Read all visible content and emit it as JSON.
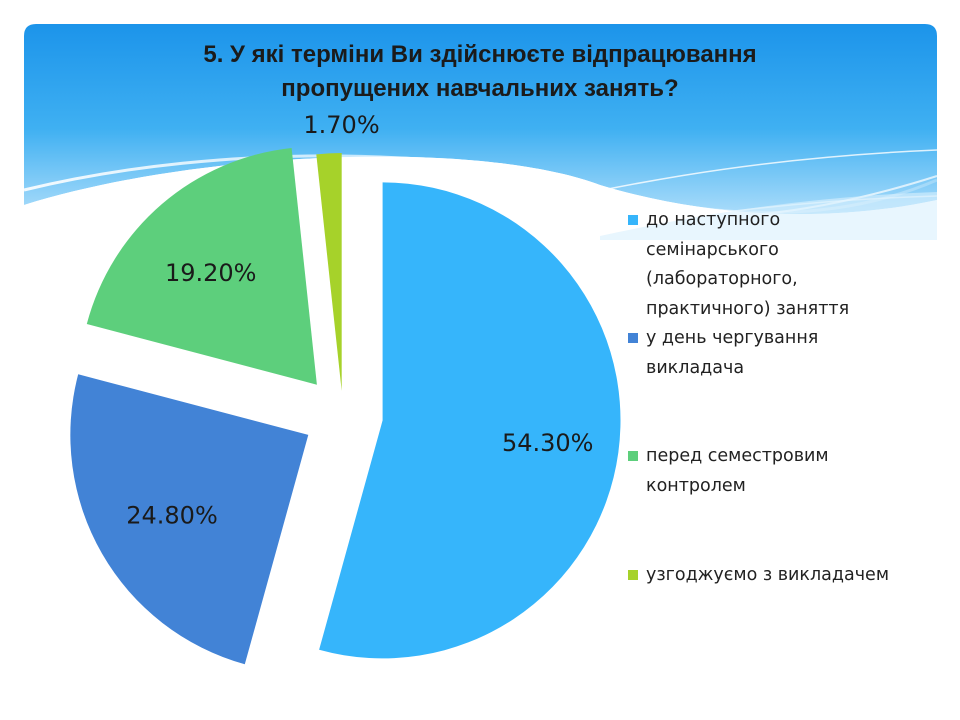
{
  "title": {
    "line1": "5. У які терміни Ви здійснюєте відпрацювання",
    "line2": "пропущених навчальних занять?"
  },
  "chart_data": {
    "type": "pie",
    "title": "5. У які терміни Ви здійснюєте відпрацювання пропущених навчальних занять?",
    "categories": [
      "до наступного семінарського (лабораторного, практичного) заняття",
      "у день чергування викладача",
      "перед семестровим контролем",
      "узгоджуємо з викладачем"
    ],
    "values": [
      54.3,
      24.8,
      19.2,
      1.7
    ],
    "labels": [
      "54.30%",
      "24.80%",
      "19.20%",
      "1.70%"
    ],
    "colors": [
      "#36b5fb",
      "#4283d6",
      "#5dcf7c",
      "#a6d22a"
    ],
    "legend": "right",
    "exploded": true
  },
  "legend": {
    "items": [
      {
        "line1": "до наступного",
        "line2": "семінарського",
        "line3": "(лабораторного,",
        "line4": "практичного) заняття"
      },
      {
        "line1": "у день чергування",
        "line2": "викладача"
      },
      {
        "line1": "перед семестровим",
        "line2": "контролем"
      },
      {
        "line1": "узгоджуємо з викладачем"
      }
    ]
  },
  "theme": {
    "header_top": "#1e96ea",
    "header_bottom": "#bfe6fb"
  }
}
